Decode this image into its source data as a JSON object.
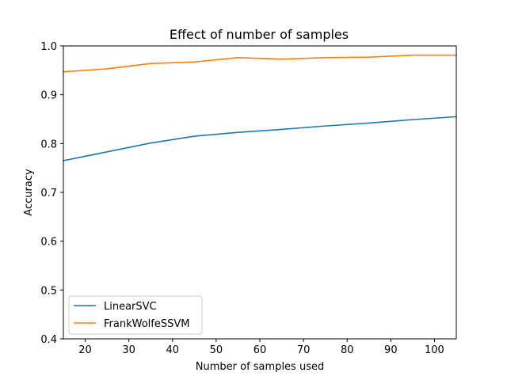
{
  "chart_data": {
    "type": "line",
    "title": "Effect of number of samples",
    "xlabel": "Number of samples used",
    "ylabel": "Accuracy",
    "xlim": [
      15,
      105
    ],
    "ylim": [
      0.4,
      1.0
    ],
    "x": [
      15,
      25,
      35,
      45,
      55,
      65,
      75,
      85,
      95,
      105
    ],
    "xticks": [
      20,
      30,
      40,
      50,
      60,
      70,
      80,
      90,
      100
    ],
    "xtick_labels": [
      "20",
      "30",
      "40",
      "50",
      "60",
      "70",
      "80",
      "90",
      "100"
    ],
    "yticks": [
      0.4,
      0.5,
      0.6,
      0.7,
      0.8,
      0.9,
      1.0
    ],
    "ytick_labels": [
      "0.4",
      "0.5",
      "0.6",
      "0.7",
      "0.8",
      "0.9",
      "1.0"
    ],
    "grid": false,
    "legend_position": "lower-left",
    "series": [
      {
        "name": "LinearSVC",
        "color": "#1f77b4",
        "values": [
          0.765,
          0.783,
          0.801,
          0.815,
          0.823,
          0.829,
          0.836,
          0.842,
          0.849,
          0.855
        ]
      },
      {
        "name": "FrankWolfeSSVM",
        "color": "#ff7f0e",
        "values": [
          0.947,
          0.953,
          0.964,
          0.967,
          0.976,
          0.973,
          0.976,
          0.977,
          0.981,
          0.981
        ]
      }
    ]
  }
}
